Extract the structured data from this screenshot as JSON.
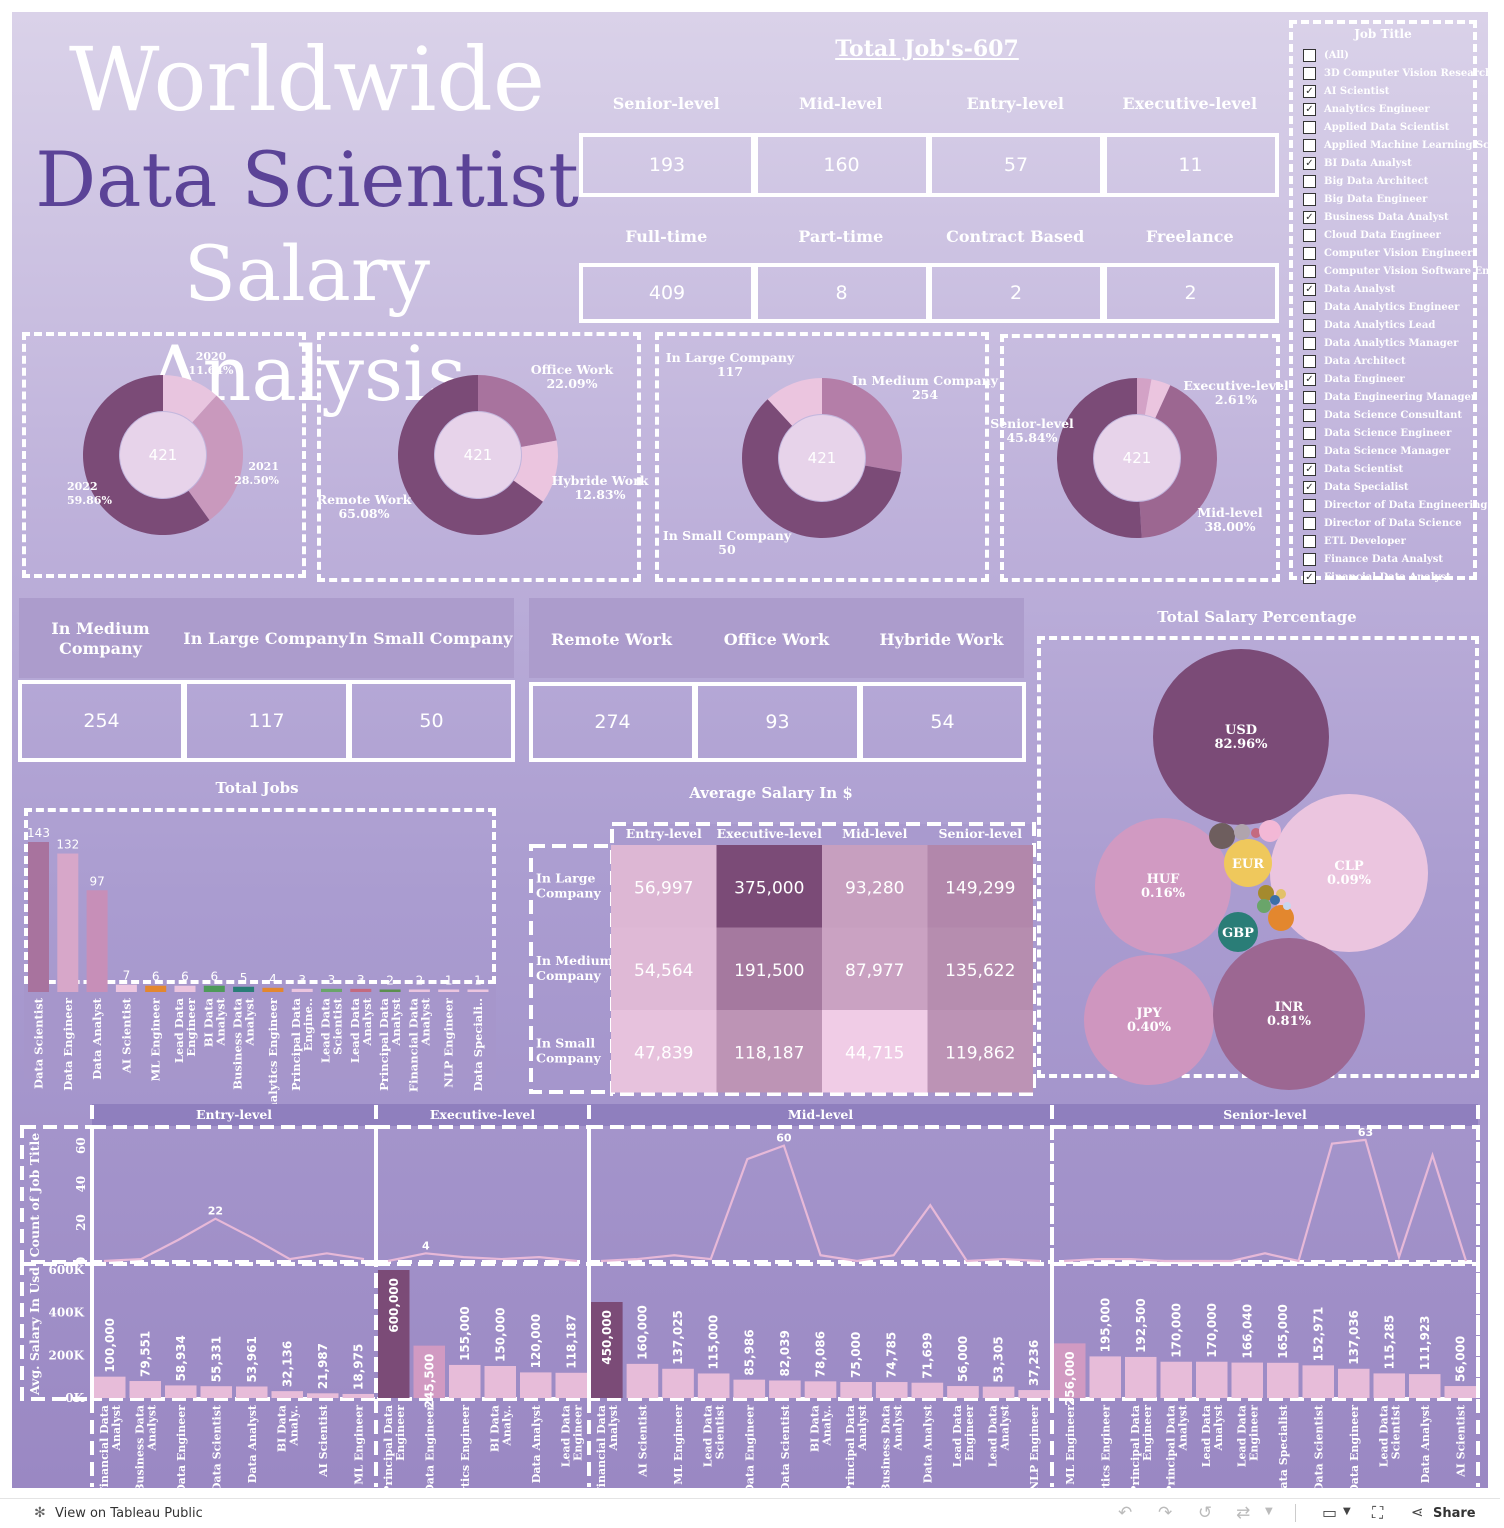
{
  "title": {
    "line1": "Worldwide",
    "line2": "Data Scientist",
    "line3": "Salary Analysis"
  },
  "total_jobs": "Total  Job's-607",
  "experience_kpis": [
    {
      "label": "Senior-level",
      "value": "193"
    },
    {
      "label": "Mid-level",
      "value": "160"
    },
    {
      "label": "Entry-level",
      "value": "57"
    },
    {
      "label": "Executive-level",
      "value": "11"
    }
  ],
  "employment_kpis": [
    {
      "label": "Full-time",
      "value": "409"
    },
    {
      "label": "Part-time",
      "value": "8"
    },
    {
      "label": "Contract Based",
      "value": "2"
    },
    {
      "label": "Freelance",
      "value": "2"
    }
  ],
  "filter": {
    "title": "Job Title",
    "items": [
      {
        "label": "(All)",
        "checked": false
      },
      {
        "label": "3D Computer Vision Researcher",
        "checked": false
      },
      {
        "label": "AI Scientist",
        "checked": true
      },
      {
        "label": "Analytics Engineer",
        "checked": true
      },
      {
        "label": "Applied Data Scientist",
        "checked": false
      },
      {
        "label": "Applied Machine Learning Sc...",
        "checked": false
      },
      {
        "label": "BI Data Analyst",
        "checked": true
      },
      {
        "label": "Big Data Architect",
        "checked": false
      },
      {
        "label": "Big Data Engineer",
        "checked": false
      },
      {
        "label": "Business Data Analyst",
        "checked": true
      },
      {
        "label": "Cloud Data Engineer",
        "checked": false
      },
      {
        "label": "Computer Vision Engineer",
        "checked": false
      },
      {
        "label": "Computer Vision Software En...",
        "checked": false
      },
      {
        "label": "Data Analyst",
        "checked": true
      },
      {
        "label": "Data Analytics Engineer",
        "checked": false
      },
      {
        "label": "Data Analytics Lead",
        "checked": false
      },
      {
        "label": "Data Analytics Manager",
        "checked": false
      },
      {
        "label": "Data Architect",
        "checked": false
      },
      {
        "label": "Data Engineer",
        "checked": true
      },
      {
        "label": "Data Engineering Manager",
        "checked": false
      },
      {
        "label": "Data Science Consultant",
        "checked": false
      },
      {
        "label": "Data Science Engineer",
        "checked": false
      },
      {
        "label": "Data Science Manager",
        "checked": false
      },
      {
        "label": "Data Scientist",
        "checked": true
      },
      {
        "label": "Data Specialist",
        "checked": true
      },
      {
        "label": "Director of Data Engineering",
        "checked": false
      },
      {
        "label": "Director of Data Science",
        "checked": false
      },
      {
        "label": "ETL Developer",
        "checked": false
      },
      {
        "label": "Finance Data Analyst",
        "checked": false
      },
      {
        "label": "Financial Data Analyst",
        "checked": true
      }
    ]
  },
  "donuts": [
    {
      "center": "421",
      "slices": [
        {
          "label": "2020",
          "pct": "11.64%",
          "v": 11.64,
          "color": "#e8c5df"
        },
        {
          "label": "2021",
          "pct": "28.50%",
          "v": 28.5,
          "color": "#c999bd"
        },
        {
          "label": "2022",
          "pct": "59.86%",
          "v": 59.86,
          "color": "#7b4b77"
        }
      ]
    },
    {
      "center": "421",
      "slices": [
        {
          "label": "Office Work",
          "pct": "22.09%",
          "v": 22.09,
          "color": "#a8739e"
        },
        {
          "label": "Hybride Work",
          "pct": "12.83%",
          "v": 12.83,
          "color": "#ebc5df"
        },
        {
          "label": "Remote Work",
          "pct": "65.08%",
          "v": 65.08,
          "color": "#7b4b77"
        }
      ]
    },
    {
      "center": "421",
      "slices": [
        {
          "label": "In Large Company",
          "pct": "117",
          "v": 117,
          "color": "#b47ea8"
        },
        {
          "label": "In Medium Company",
          "pct": "254",
          "v": 254,
          "color": "#7b4b77"
        },
        {
          "label": "In Small Company",
          "pct": "50",
          "v": 50,
          "color": "#ebc5df"
        }
      ]
    },
    {
      "center": "421",
      "slices": [
        {
          "label": "Executive-level",
          "pct": "2.61%",
          "v": 2.61,
          "color": "#d3a2c6"
        },
        {
          "label": "",
          "pct": "",
          "v": 3.55,
          "color": "#ebc5df"
        },
        {
          "label": "Mid-level",
          "pct": "38.00%",
          "v": 38.0,
          "color": "#9c6791"
        },
        {
          "label": "Senior-level",
          "pct": "45.84%",
          "v": 45.84,
          "color": "#7b4b77"
        }
      ]
    }
  ],
  "company_kpis": [
    {
      "label": "In Medium Company",
      "value": "254"
    },
    {
      "label": "In Large Company",
      "value": "117"
    },
    {
      "label": "In Small Company",
      "value": "50"
    }
  ],
  "work_kpis": [
    {
      "label": "Remote Work",
      "value": "274"
    },
    {
      "label": "Office Work",
      "value": "93"
    },
    {
      "label": "Hybride Work",
      "value": "54"
    }
  ],
  "chart_data": [
    {
      "type": "bar",
      "title": "Total  Jobs",
      "categories": [
        "Data Scientist",
        "Data Engineer",
        "Data Analyst",
        "AI Scientist",
        "ML Engineer",
        "Lead Data Engineer",
        "BI Data Analyst",
        "Business Data Analyst",
        "Analytics Engineer",
        "Principal Data Engine..",
        "Lead Data Scientist",
        "Lead Data Analyst",
        "Principal Data Analyst",
        "Financial Data Analyst",
        "NLP Engineer",
        "Data Speciali.."
      ],
      "values": [
        143,
        132,
        97,
        7,
        6,
        6,
        6,
        5,
        4,
        3,
        3,
        3,
        2,
        2,
        1,
        1
      ],
      "colors": [
        "#a8739e",
        "#d7a7c9",
        "#c78fb8",
        "#ebc5df",
        "#e3872e",
        "#ebc5df",
        "#4e9a5a",
        "#2a7d77",
        "#e3872e",
        "#ebc5df",
        "#6aa56a",
        "#c46a80",
        "#5b8f4e",
        "#ebc5df",
        "#ebc5df",
        "#ebc5df"
      ]
    },
    {
      "type": "heatmap",
      "title": "Average  Salary  In  $",
      "columns": [
        "Entry-level",
        "Executive-level",
        "Mid-level",
        "Senior-level"
      ],
      "rows": [
        {
          "label": "In Large Company",
          "values": [
            56997,
            375000,
            93280,
            149299
          ],
          "text": [
            "56,997",
            "375,000",
            "93,280",
            "149,299"
          ]
        },
        {
          "label": "In Medium Company",
          "values": [
            54564,
            191500,
            87977,
            135622
          ],
          "text": [
            "54,564",
            "191,500",
            "87,977",
            "135,622"
          ]
        },
        {
          "label": "In Small Company",
          "values": [
            47839,
            118187,
            44715,
            119862
          ],
          "text": [
            "47,839",
            "118,187",
            "44,715",
            "119,862"
          ]
        }
      ]
    },
    {
      "type": "scatter",
      "title": "Total  Salary  Percentage",
      "labeled": [
        {
          "name": "USD",
          "pct": "82.96%"
        },
        {
          "name": "CLP",
          "pct": "0.09%"
        },
        {
          "name": "HUF",
          "pct": "0.16%"
        },
        {
          "name": "JPY",
          "pct": "0.40%"
        },
        {
          "name": "INR",
          "pct": "0.81%"
        },
        {
          "name": "EUR",
          "pct": ""
        },
        {
          "name": "GBP",
          "pct": ""
        }
      ]
    },
    {
      "type": "line",
      "ylabel": "Count of Job Title",
      "yticks": [
        "0",
        "20",
        "40",
        "60"
      ],
      "ymax": 65,
      "panels": [
        {
          "name": "Entry-level",
          "values": [
            0,
            1,
            11,
            22,
            12,
            1,
            4,
            1
          ],
          "label_index": 3,
          "label": "22"
        },
        {
          "name": "Executive-level",
          "values": [
            0,
            4,
            2,
            1,
            2,
            0
          ],
          "label_index": 1,
          "label": "4"
        },
        {
          "name": "Mid-level",
          "values": [
            0,
            1,
            3,
            1,
            53,
            60,
            3,
            0,
            3,
            29,
            0,
            1,
            0
          ],
          "label_index": 5,
          "label": "60"
        },
        {
          "name": "Senior-level",
          "values": [
            0,
            1,
            1,
            0,
            0,
            0,
            4,
            0,
            61,
            63,
            2,
            55,
            0
          ],
          "label_index": 9,
          "label": "63"
        }
      ]
    },
    {
      "type": "bar",
      "ylabel": "Avg. Salary In Usd",
      "yticks": [
        "0K",
        "200K",
        "400K",
        "600K"
      ],
      "ymax": 600000,
      "panels": [
        {
          "name": "Entry-level",
          "bars": [
            {
              "c": "Financial Data Analyst",
              "v": 100000,
              "t": "100,000"
            },
            {
              "c": "Business Data Analyst",
              "v": 79551,
              "t": "79,551"
            },
            {
              "c": "Data Engineer",
              "v": 58934,
              "t": "58,934"
            },
            {
              "c": "Data Scientist",
              "v": 55331,
              "t": "55,331"
            },
            {
              "c": "Data Analyst",
              "v": 53961,
              "t": "53,961"
            },
            {
              "c": "BI Data Analy..",
              "v": 32136,
              "t": "32,136"
            },
            {
              "c": "AI Scientist",
              "v": 21987,
              "t": "21,987"
            },
            {
              "c": "ML Engineer",
              "v": 18975,
              "t": "18,975"
            }
          ]
        },
        {
          "name": "Executive-level",
          "bars": [
            {
              "c": "Principal Data Engineer",
              "v": 600000,
              "t": "600,000"
            },
            {
              "c": "Data Engineer",
              "v": 245500,
              "t": "245,500"
            },
            {
              "c": "Analytics Engineer",
              "v": 155000,
              "t": "155,000"
            },
            {
              "c": "BI Data Analy..",
              "v": 150000,
              "t": "150,000"
            },
            {
              "c": "Data Analyst",
              "v": 120000,
              "t": "120,000"
            },
            {
              "c": "Lead Data Engineer",
              "v": 118187,
              "t": "118,187"
            }
          ]
        },
        {
          "name": "Mid-level",
          "bars": [
            {
              "c": "Financial Data Analyst",
              "v": 450000,
              "t": "450,000"
            },
            {
              "c": "AI Scientist",
              "v": 160000,
              "t": "160,000"
            },
            {
              "c": "ML Engineer",
              "v": 137025,
              "t": "137,025"
            },
            {
              "c": "Lead Data Scientist",
              "v": 115000,
              "t": "115,000"
            },
            {
              "c": "Data Engineer",
              "v": 85986,
              "t": "85,986"
            },
            {
              "c": "Data Scientist",
              "v": 82039,
              "t": "82,039"
            },
            {
              "c": "BI Data Analy..",
              "v": 78086,
              "t": "78,086"
            },
            {
              "c": "Principal Data Analyst",
              "v": 75000,
              "t": "75,000"
            },
            {
              "c": "Business Data Analyst",
              "v": 74785,
              "t": "74,785"
            },
            {
              "c": "Data Analyst",
              "v": 71699,
              "t": "71,699"
            },
            {
              "c": "Lead Data Engineer",
              "v": 56000,
              "t": "56,000"
            },
            {
              "c": "Lead Data Analyst",
              "v": 53305,
              "t": "53,305"
            },
            {
              "c": "NLP Engineer",
              "v": 37236,
              "t": "37,236"
            }
          ]
        },
        {
          "name": "Senior-level",
          "bars": [
            {
              "c": "ML Engineer",
              "v": 256000,
              "t": "256,000"
            },
            {
              "c": "Analytics Engineer",
              "v": 195000,
              "t": "195,000"
            },
            {
              "c": "Principal Data Engineer",
              "v": 192500,
              "t": "192,500"
            },
            {
              "c": "Principal Data Analyst",
              "v": 170000,
              "t": "170,000"
            },
            {
              "c": "Lead Data Analyst",
              "v": 170000,
              "t": "170,000"
            },
            {
              "c": "Lead Data Engineer",
              "v": 166040,
              "t": "166,040"
            },
            {
              "c": "Data Specialist",
              "v": 165000,
              "t": "165,000"
            },
            {
              "c": "Data Scientist",
              "v": 152971,
              "t": "152,971"
            },
            {
              "c": "Data Engineer",
              "v": 137036,
              "t": "137,036"
            },
            {
              "c": "Lead Data Scientist",
              "v": 115285,
              "t": "115,285"
            },
            {
              "c": "Data Analyst",
              "v": 111923,
              "t": "111,923"
            },
            {
              "c": "AI Scientist",
              "v": 56000,
              "t": "56,000"
            }
          ]
        }
      ]
    }
  ],
  "toolbar": {
    "view_label": "View on Tableau Public",
    "share_label": "Share"
  }
}
